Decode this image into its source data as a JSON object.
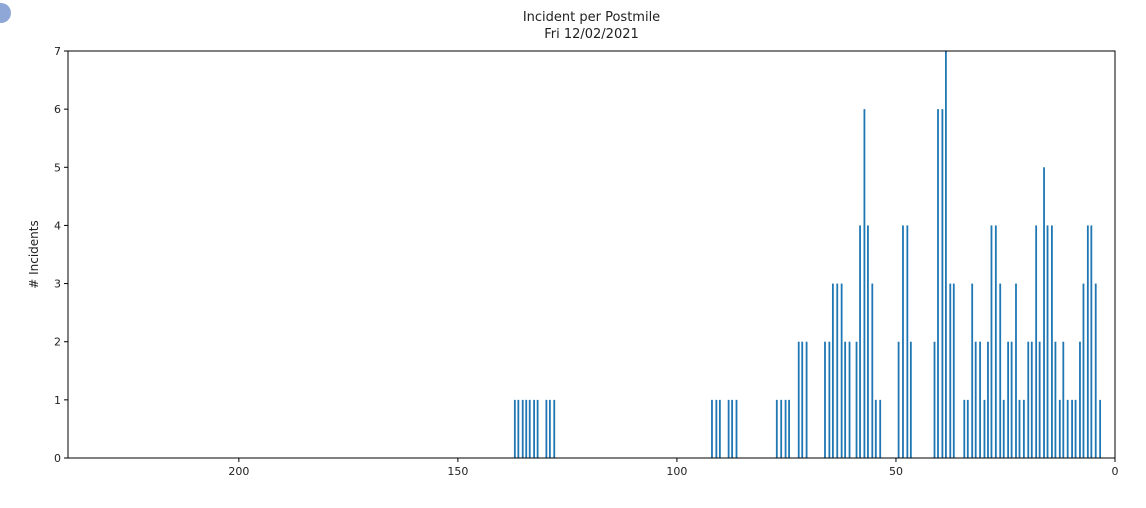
{
  "chart_data": {
    "type": "bar",
    "title": "Incident per Postmile",
    "subtitle": "Fri 12/02/2021",
    "xlabel": "",
    "ylabel": "# Incidents",
    "xlim": [
      239,
      0
    ],
    "ylim": [
      0,
      7
    ],
    "x_inverted": true,
    "x_ticks": [
      200,
      150,
      100,
      50,
      0
    ],
    "y_ticks": [
      0,
      1,
      2,
      3,
      4,
      5,
      6,
      7
    ],
    "grid": false,
    "bar_color": "#1f77b4",
    "bars": [
      {
        "x": 137.0,
        "y": 1
      },
      {
        "x": 136.2,
        "y": 1
      },
      {
        "x": 135.2,
        "y": 1
      },
      {
        "x": 134.4,
        "y": 1
      },
      {
        "x": 133.6,
        "y": 1
      },
      {
        "x": 132.6,
        "y": 1
      },
      {
        "x": 131.8,
        "y": 1
      },
      {
        "x": 129.8,
        "y": 1
      },
      {
        "x": 129.0,
        "y": 1
      },
      {
        "x": 128.0,
        "y": 1
      },
      {
        "x": 92.0,
        "y": 1
      },
      {
        "x": 91.0,
        "y": 1
      },
      {
        "x": 90.2,
        "y": 1
      },
      {
        "x": 88.2,
        "y": 1
      },
      {
        "x": 87.4,
        "y": 1
      },
      {
        "x": 86.4,
        "y": 1
      },
      {
        "x": 77.2,
        "y": 1
      },
      {
        "x": 76.2,
        "y": 1
      },
      {
        "x": 75.2,
        "y": 1
      },
      {
        "x": 74.4,
        "y": 1
      },
      {
        "x": 72.2,
        "y": 2
      },
      {
        "x": 71.4,
        "y": 2
      },
      {
        "x": 70.4,
        "y": 2
      },
      {
        "x": 66.2,
        "y": 2
      },
      {
        "x": 65.2,
        "y": 2
      },
      {
        "x": 64.4,
        "y": 3
      },
      {
        "x": 63.4,
        "y": 3
      },
      {
        "x": 62.4,
        "y": 3
      },
      {
        "x": 61.6,
        "y": 2
      },
      {
        "x": 60.6,
        "y": 2
      },
      {
        "x": 59.0,
        "y": 2
      },
      {
        "x": 58.2,
        "y": 4
      },
      {
        "x": 57.2,
        "y": 6
      },
      {
        "x": 56.4,
        "y": 4
      },
      {
        "x": 55.4,
        "y": 3
      },
      {
        "x": 54.6,
        "y": 1
      },
      {
        "x": 53.6,
        "y": 1
      },
      {
        "x": 49.4,
        "y": 2
      },
      {
        "x": 48.4,
        "y": 4
      },
      {
        "x": 47.4,
        "y": 4
      },
      {
        "x": 46.6,
        "y": 2
      },
      {
        "x": 41.2,
        "y": 2
      },
      {
        "x": 40.4,
        "y": 6
      },
      {
        "x": 39.4,
        "y": 6
      },
      {
        "x": 38.6,
        "y": 7
      },
      {
        "x": 37.6,
        "y": 3
      },
      {
        "x": 36.8,
        "y": 3
      },
      {
        "x": 34.4,
        "y": 1
      },
      {
        "x": 33.6,
        "y": 1
      },
      {
        "x": 32.6,
        "y": 3
      },
      {
        "x": 31.8,
        "y": 2
      },
      {
        "x": 30.8,
        "y": 2
      },
      {
        "x": 29.8,
        "y": 1
      },
      {
        "x": 29.0,
        "y": 2
      },
      {
        "x": 28.2,
        "y": 4
      },
      {
        "x": 27.2,
        "y": 4
      },
      {
        "x": 26.2,
        "y": 3
      },
      {
        "x": 25.4,
        "y": 1
      },
      {
        "x": 24.4,
        "y": 2
      },
      {
        "x": 23.6,
        "y": 2
      },
      {
        "x": 22.6,
        "y": 3
      },
      {
        "x": 21.8,
        "y": 1
      },
      {
        "x": 20.8,
        "y": 1
      },
      {
        "x": 19.8,
        "y": 2
      },
      {
        "x": 19.0,
        "y": 2
      },
      {
        "x": 18.0,
        "y": 4
      },
      {
        "x": 17.2,
        "y": 2
      },
      {
        "x": 16.2,
        "y": 5
      },
      {
        "x": 15.4,
        "y": 4
      },
      {
        "x": 14.4,
        "y": 4
      },
      {
        "x": 13.6,
        "y": 2
      },
      {
        "x": 12.6,
        "y": 1
      },
      {
        "x": 11.8,
        "y": 2
      },
      {
        "x": 10.8,
        "y": 1
      },
      {
        "x": 9.8,
        "y": 1
      },
      {
        "x": 9.0,
        "y": 1
      },
      {
        "x": 8.0,
        "y": 2
      },
      {
        "x": 7.2,
        "y": 3
      },
      {
        "x": 6.2,
        "y": 4
      },
      {
        "x": 5.4,
        "y": 4
      },
      {
        "x": 4.4,
        "y": 3
      },
      {
        "x": 3.4,
        "y": 1
      }
    ]
  }
}
